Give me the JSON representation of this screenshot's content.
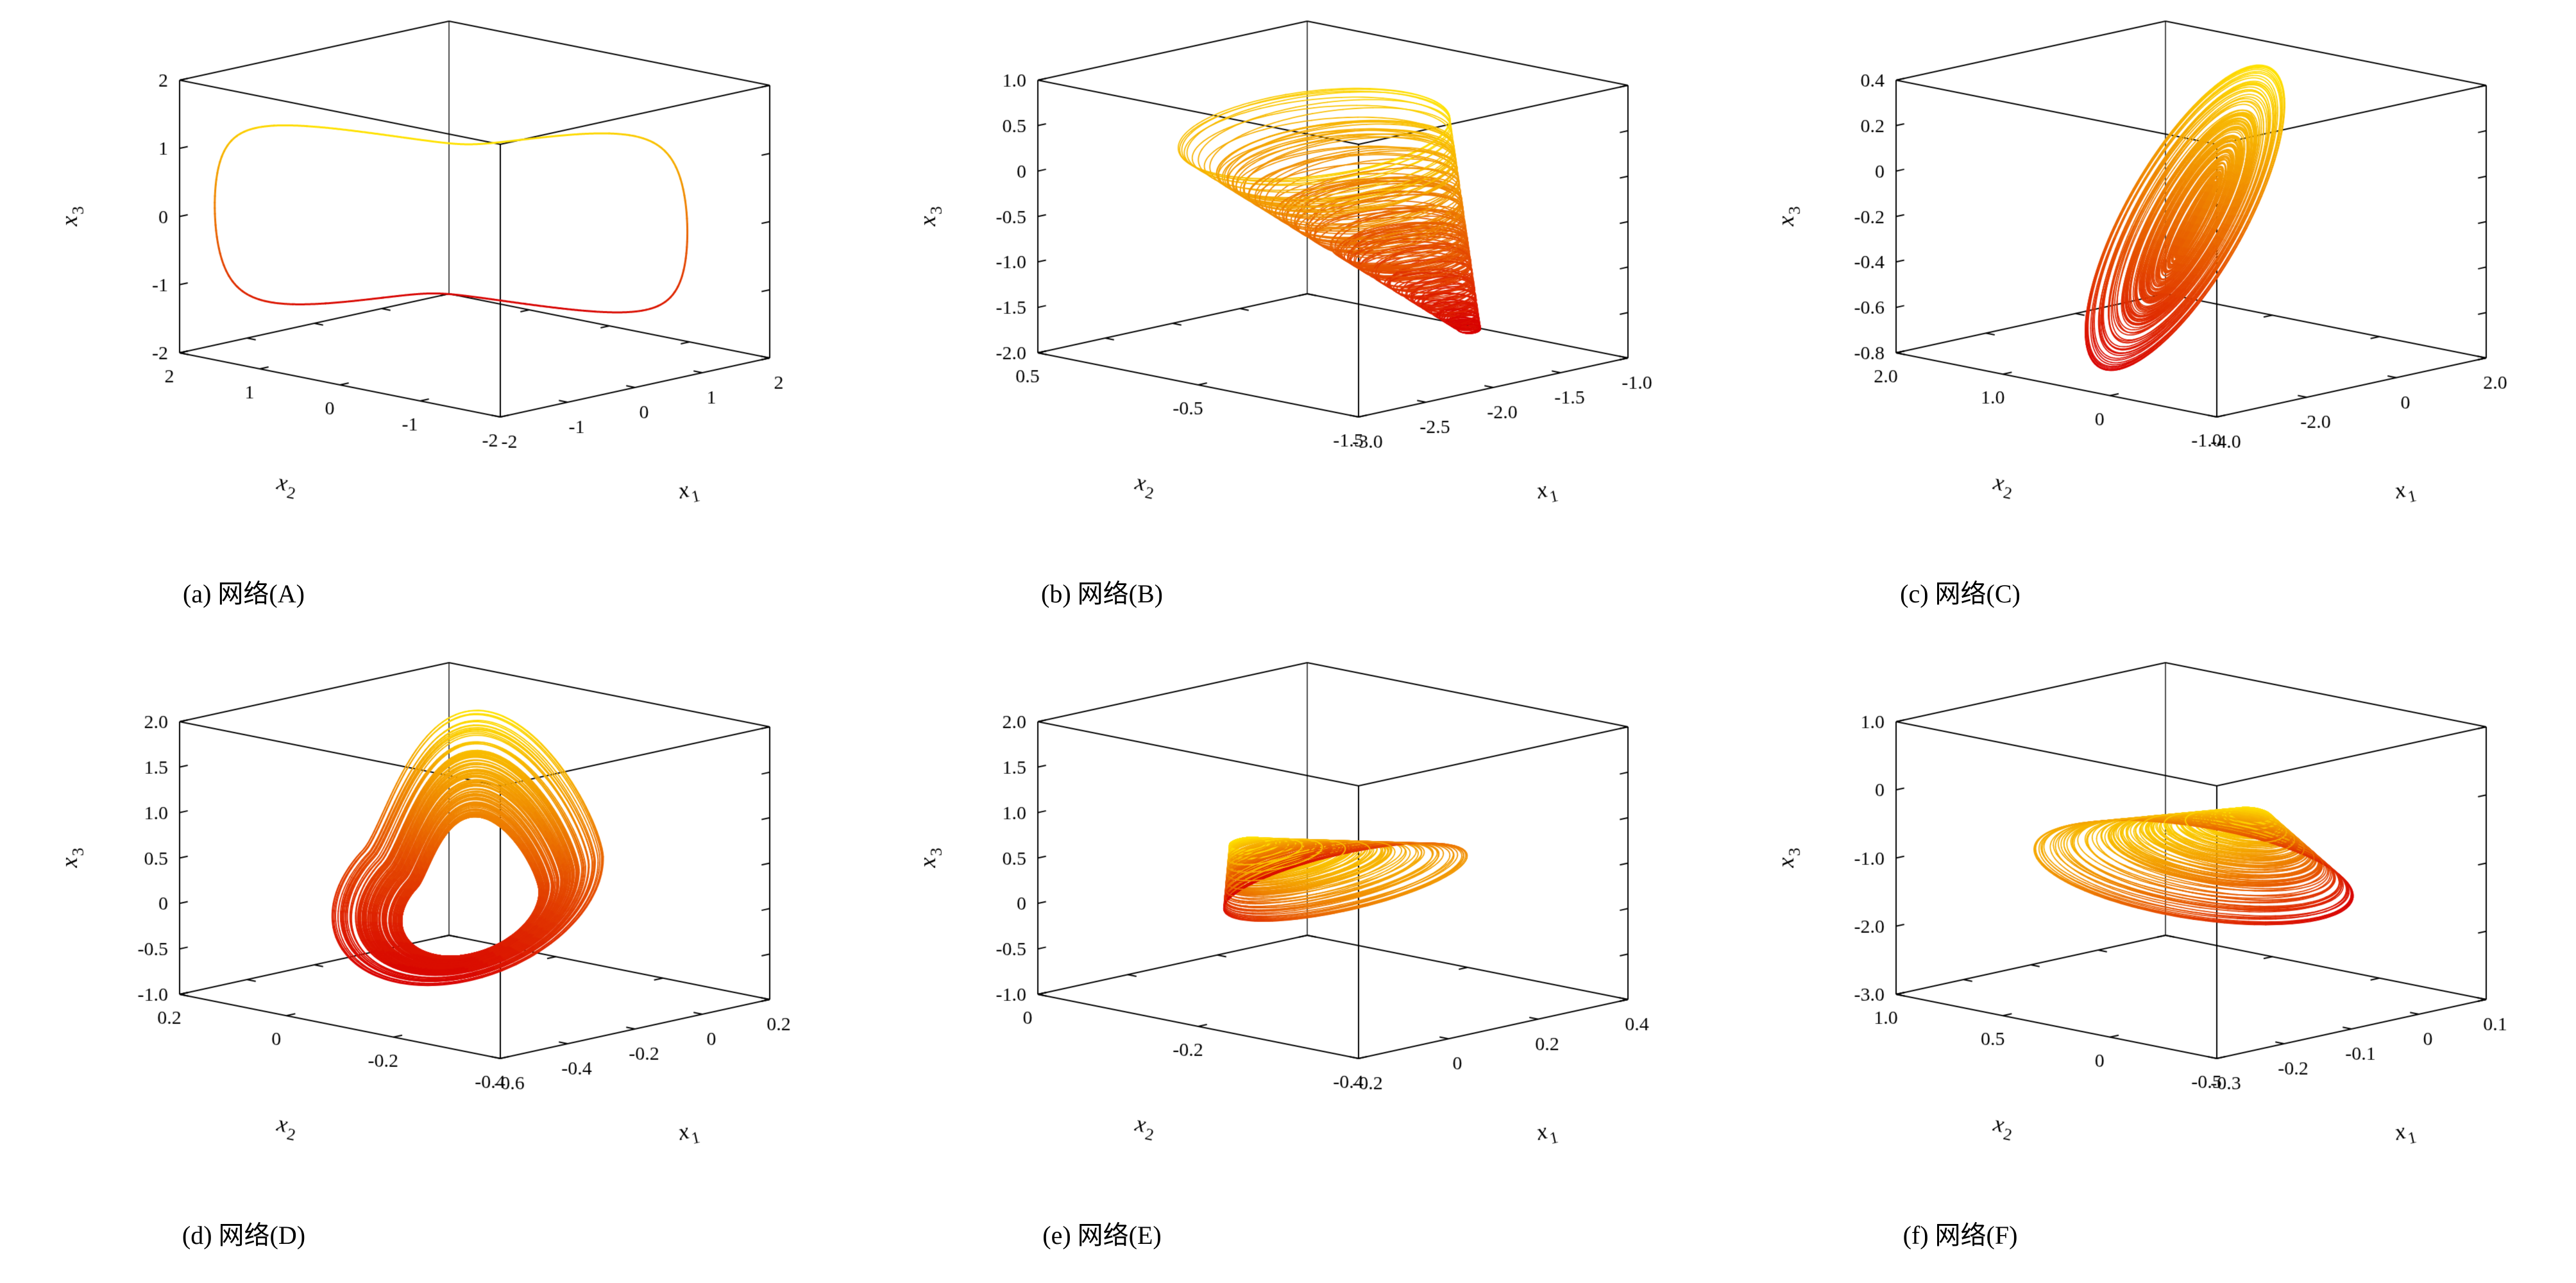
{
  "figure": {
    "background": "#ffffff",
    "rows": 2,
    "cols": 3,
    "description": "Six 3D phase-space trajectories of chaotic neural networks, colored from red (low x3) to yellow (high x3)"
  },
  "chart_data": [
    {
      "panel": "a",
      "type": "trajectory3d",
      "title": "(a) 网络(A)",
      "shape": "closed periodic orbit (limit cycle)",
      "colormap": {
        "low": "#d80000",
        "high": "#ffe400"
      },
      "axes": {
        "x1": {
          "label": "x",
          "subscript": "1",
          "range": [
            -2,
            2
          ],
          "ticks": [
            "-2",
            "-1",
            "0",
            "1",
            "2"
          ]
        },
        "x2": {
          "label": "x",
          "subscript": "2",
          "range": [
            -2,
            2
          ],
          "ticks": [
            "2",
            "1",
            "0",
            "-1",
            "-2"
          ]
        },
        "x3": {
          "label": "x",
          "subscript": "3",
          "range": [
            -2,
            2
          ],
          "ticks": [
            "2",
            "1",
            "0",
            "-1",
            "-2"
          ]
        }
      },
      "trajectory": {
        "type": "cycle",
        "points": 1600,
        "sharp": 2.0,
        "center": [
          0.46,
          0.54,
          0.5
        ],
        "radius": [
          0.44,
          0.42,
          0.45
        ],
        "phases": [
          0.3,
          1.95,
          4.2
        ],
        "lineWidth": 3
      }
    },
    {
      "panel": "b",
      "type": "trajectory3d",
      "title": "(b) 网络(B)",
      "shape": "funnel-shaped chaotic attractor, wide swirl at top narrowing to a point at lower right",
      "colormap": {
        "low": "#d80000",
        "high": "#ffe400"
      },
      "axes": {
        "x1": {
          "label": "x",
          "subscript": "1",
          "range": [
            -3,
            -1
          ],
          "ticks": [
            "-3.0",
            "-2.5",
            "-2.0",
            "-1.5",
            "-1.0"
          ]
        },
        "x2": {
          "label": "x",
          "subscript": "2",
          "range": [
            -1.5,
            0.5
          ],
          "ticks": [
            "0.5",
            "-0.5",
            "-1.5"
          ]
        },
        "x3": {
          "label": "x",
          "subscript": "3",
          "range": [
            -2,
            1
          ],
          "ticks": [
            "1.0",
            "0.5",
            "0",
            "-0.5",
            "-1.0",
            "-1.5",
            "-2.0"
          ]
        }
      },
      "trajectory": {
        "type": "loops",
        "turns": 170,
        "pointsPerTurn": 150,
        "envFreq": 0.05,
        "eMin": 0.05,
        "eMax": 1,
        "c0": [
          0.8,
          0.3,
          0.04
        ],
        "c1": [
          -0.36,
          0.22,
          0.8
        ],
        "a0": [
          0.02,
          0.01,
          0.0
        ],
        "a1": [
          0.4,
          0.06,
          0.05
        ],
        "b0": [
          0.01,
          0.02,
          0.0
        ],
        "b1": [
          0.1,
          0.4,
          -0.06
        ],
        "lineWidth": 1.8
      }
    },
    {
      "panel": "c",
      "type": "trajectory3d",
      "title": "(c) 网络(C)",
      "shape": "elongated flattened attractor rising diagonally from lower left (red) to upper right (yellow)",
      "colormap": {
        "low": "#d80000",
        "high": "#ffe400"
      },
      "axes": {
        "x1": {
          "label": "x",
          "subscript": "1",
          "range": [
            -4,
            2
          ],
          "ticks": [
            "-4.0",
            "-2.0",
            "0",
            "2.0"
          ]
        },
        "x2": {
          "label": "x",
          "subscript": "2",
          "range": [
            -1,
            2
          ],
          "ticks": [
            "2.0",
            "1.0",
            "0",
            "-1.0"
          ]
        },
        "x3": {
          "label": "x",
          "subscript": "3",
          "range": [
            -0.8,
            0.4
          ],
          "ticks": [
            "0.4",
            "0.2",
            "0",
            "-0.2",
            "-0.4",
            "-0.6",
            "-0.8"
          ]
        }
      },
      "trajectory": {
        "type": "loops",
        "turns": 150,
        "pointsPerTurn": 150,
        "envFreq": 0.042,
        "eMin": 0.12,
        "eMax": 1,
        "c0": [
          0.5,
          0.48,
          0.5
        ],
        "c1": [
          0.0,
          0.04,
          0.0
        ],
        "a0": [
          0.04,
          0.01,
          0.03
        ],
        "a1": [
          0.41,
          0.16,
          0.4
        ],
        "b0": [
          0.01,
          0.03,
          0.01
        ],
        "b1": [
          0.05,
          -0.22,
          0.09
        ],
        "lineWidth": 1.8
      }
    },
    {
      "panel": "d",
      "type": "trajectory3d",
      "title": "(d) 网络(D)",
      "shape": "Roessler-like folded band attractor with central hole, yellow at upper right, red at lower left",
      "colormap": {
        "low": "#d80000",
        "high": "#ffe400"
      },
      "axes": {
        "x1": {
          "label": "x",
          "subscript": "1",
          "range": [
            -0.6,
            0.2
          ],
          "ticks": [
            "-0.6",
            "-0.4",
            "-0.2",
            "0",
            "0.2"
          ]
        },
        "x2": {
          "label": "x",
          "subscript": "2",
          "range": [
            -0.4,
            0.2
          ],
          "ticks": [
            "0.2",
            "0",
            "-0.2",
            "-0.4"
          ]
        },
        "x3": {
          "label": "x",
          "subscript": "3",
          "range": [
            -1,
            2
          ],
          "ticks": [
            "2.0",
            "1.5",
            "1.0",
            "0.5",
            "0",
            "-0.5",
            "-1.0"
          ]
        }
      },
      "trajectory": {
        "type": "loops",
        "turns": 120,
        "pointsPerTurn": 170,
        "envFreq": 0.04,
        "eMin": 0.5,
        "eMax": 1,
        "c0": [
          0.4,
          0.42,
          0.3
        ],
        "c1": [
          0.05,
          0.06,
          0.12
        ],
        "a0": [
          0,
          0,
          0
        ],
        "a1": [
          0.43,
          0.22,
          0.22
        ],
        "b0": [
          0,
          0,
          0
        ],
        "b1": [
          -0.1,
          0.32,
          -0.04
        ],
        "fold": [
          -0.08,
          0.04,
          0.3
        ],
        "foldThresh": 0.35,
        "lineWidth": 2
      }
    },
    {
      "panel": "e",
      "type": "trajectory3d",
      "title": "(e) 网络(E)",
      "shape": "flat nested band attractor, dense orange swirl at left with wide red loops spreading right",
      "colormap": {
        "low": "#d80000",
        "high": "#ffe400"
      },
      "axes": {
        "x1": {
          "label": "x",
          "subscript": "1",
          "range": [
            -0.2,
            0.4
          ],
          "ticks": [
            "-0.2",
            "0",
            "0.2",
            "0.4"
          ]
        },
        "x2": {
          "label": "x",
          "subscript": "2",
          "range": [
            -0.4,
            0
          ],
          "ticks": [
            "0",
            "-0.2",
            "-0.4"
          ]
        },
        "x3": {
          "label": "x",
          "subscript": "3",
          "range": [
            -1,
            2
          ],
          "ticks": [
            "2.0",
            "1.5",
            "1.0",
            "0.5",
            "0",
            "-0.5",
            "-1.0"
          ]
        }
      },
      "trajectory": {
        "type": "loops",
        "turns": 140,
        "pointsPerTurn": 160,
        "envFreq": 0.04,
        "eMin": 0.06,
        "eMax": 1,
        "c0": [
          0.22,
          0.55,
          0.62
        ],
        "c1": [
          0.3,
          -0.08,
          -0.2
        ],
        "a0": [
          0.03,
          0.0,
          0.005
        ],
        "a1": [
          0.42,
          0.1,
          0.02
        ],
        "b0": [
          0.005,
          0.03,
          0.005
        ],
        "b1": [
          0.09,
          0.32,
          -0.1
        ],
        "lineWidth": 1.8
      }
    },
    {
      "panel": "f",
      "type": "trajectory3d",
      "title": "(f) 网络(F)",
      "shape": "flat nested band attractor, dense yellow swirl at right with red loops spreading left",
      "colormap": {
        "low": "#d80000",
        "high": "#ffe400"
      },
      "axes": {
        "x1": {
          "label": "x",
          "subscript": "1",
          "range": [
            -0.3,
            0.1
          ],
          "ticks": [
            "-0.3",
            "-0.2",
            "-0.1",
            "0",
            "0.1"
          ]
        },
        "x2": {
          "label": "x",
          "subscript": "2",
          "range": [
            -0.5,
            1
          ],
          "ticks": [
            "1.0",
            "0.5",
            "0",
            "-0.5"
          ]
        },
        "x3": {
          "label": "x",
          "subscript": "3",
          "range": [
            -3,
            1
          ],
          "ticks": [
            "1.0",
            "0",
            "-1.0",
            "-2.0",
            "-3.0"
          ]
        }
      },
      "trajectory": {
        "type": "loops",
        "turns": 140,
        "pointsPerTurn": 160,
        "envFreq": 0.04,
        "eMin": 0.06,
        "eMax": 1,
        "c0": [
          0.76,
          0.52,
          0.62
        ],
        "c1": [
          -0.28,
          -0.04,
          -0.16
        ],
        "a0": [
          0.03,
          0.0,
          0.005
        ],
        "a1": [
          0.43,
          0.12,
          -0.03
        ],
        "b0": [
          0.005,
          0.03,
          0.005
        ],
        "b1": [
          -0.08,
          0.34,
          0.09
        ],
        "lineWidth": 1.8
      }
    }
  ]
}
